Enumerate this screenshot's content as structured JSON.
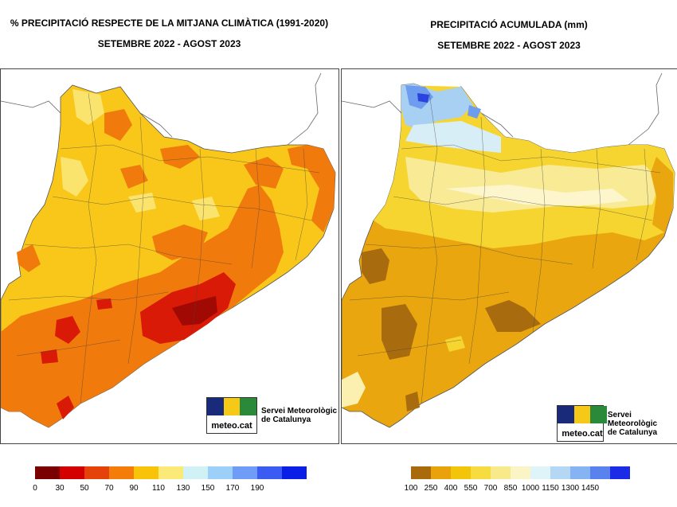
{
  "left_map": {
    "title_line1": "% PRECIPITACIÓ RESPECTE DE LA MITJANA CLIMÀTICA (1991-2020)",
    "title_line2": "SETEMBRE 2022 - AGOST 2023",
    "legend_ticks": [
      "0",
      "30",
      "50",
      "70",
      "90",
      "110",
      "130",
      "150",
      "170",
      "190"
    ],
    "legend_colors": [
      "#7a0000",
      "#d40000",
      "#e4420a",
      "#f47d0a",
      "#f9c30a",
      "#fbea78",
      "#d0f2f6",
      "#9cd0f8",
      "#6f9cf6",
      "#3a5cf2",
      "#0a1ee6"
    ]
  },
  "right_map": {
    "title_line1": "PRECIPITACIÓ ACUMULADA (mm)",
    "title_line2": "SETEMBRE 2022 - AGOST 2023",
    "legend_ticks": [
      "100",
      "250",
      "400",
      "550",
      "700",
      "850",
      "1000",
      "1150",
      "1300",
      "1450"
    ],
    "legend_colors": [
      "#a86a0a",
      "#e9a20a",
      "#f2c40a",
      "#f7dc40",
      "#f8ea8a",
      "#fbf4c4",
      "#dff4f8",
      "#b4d8f4",
      "#86b4f2",
      "#5a82ee",
      "#1c2ce6"
    ]
  },
  "logo": {
    "brand": "meteo.cat",
    "agency_line1": "Servei Meteorològic",
    "agency_line2": "de Catalunya"
  }
}
